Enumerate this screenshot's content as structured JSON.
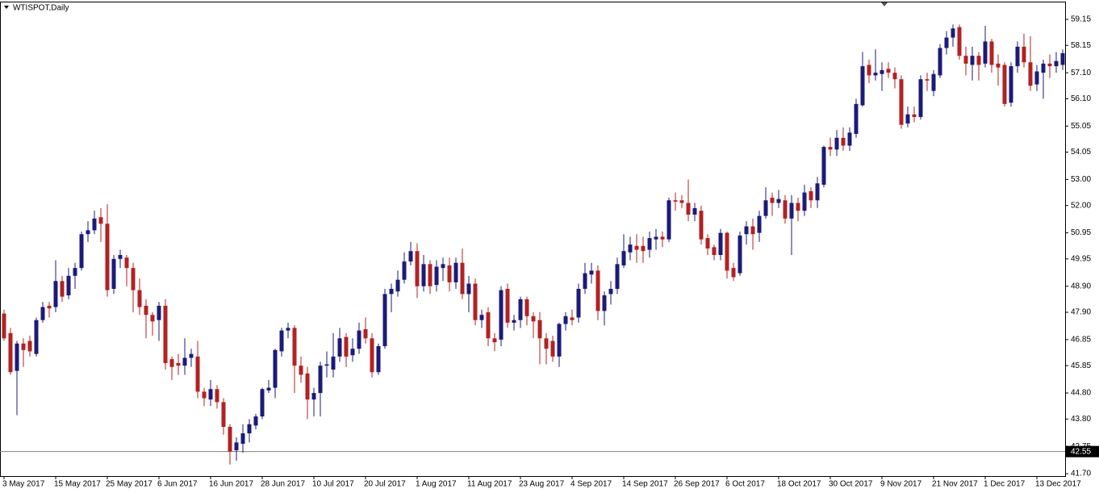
{
  "chart_data": {
    "type": "candlestick",
    "title": "WTISPOT,Daily",
    "categories": [
      "3 May 2017",
      null,
      null,
      null,
      null,
      null,
      null,
      null,
      "15 May 2017",
      null,
      null,
      null,
      null,
      null,
      null,
      null,
      "25 May 2017",
      null,
      null,
      null,
      null,
      null,
      null,
      null,
      "6 Jun 2017",
      null,
      null,
      null,
      null,
      null,
      null,
      null,
      "16 Jun 2017",
      null,
      null,
      null,
      null,
      null,
      null,
      null,
      "28 Jun 2017",
      null,
      null,
      null,
      null,
      null,
      null,
      null,
      "10 Jul 2017",
      null,
      null,
      null,
      null,
      null,
      null,
      null,
      "20 Jul 2017",
      null,
      null,
      null,
      null,
      null,
      null,
      null,
      "1 Aug 2017",
      null,
      null,
      null,
      null,
      null,
      null,
      null,
      "11 Aug 2017",
      null,
      null,
      null,
      null,
      null,
      null,
      null,
      "23 Aug 2017",
      null,
      null,
      null,
      null,
      null,
      null,
      null,
      "4 Sep 2017",
      null,
      null,
      null,
      null,
      null,
      null,
      null,
      "14 Sep 2017",
      null,
      null,
      null,
      null,
      null,
      null,
      null,
      "26 Sep 2017",
      null,
      null,
      null,
      null,
      null,
      null,
      null,
      "6 Oct 2017",
      null,
      null,
      null,
      null,
      null,
      null,
      null,
      "18 Oct 2017",
      null,
      null,
      null,
      null,
      null,
      null,
      null,
      "30 Oct 2017",
      null,
      null,
      null,
      null,
      null,
      null,
      null,
      "9 Nov 2017",
      null,
      null,
      null,
      null,
      null,
      null,
      null,
      "21 Nov 2017",
      null,
      null,
      null,
      null,
      null,
      null,
      null,
      "1 Dec 2017",
      null,
      null,
      null,
      null,
      null,
      null,
      null,
      "13 Dec 2017",
      null,
      null,
      null,
      null
    ],
    "open": [
      47.85,
      47.1,
      45.65,
      46.7,
      46.8,
      46.3,
      47.6,
      48.15,
      48.1,
      49.1,
      48.55,
      49.3,
      49.6,
      50.9,
      51.05,
      51.55,
      51.3,
      48.8,
      49.95,
      50.0,
      49.6,
      48.75,
      48.15,
      47.8,
      47.6,
      48.15,
      46.1,
      45.95,
      45.85,
      46.15,
      46.2,
      44.85,
      44.55,
      44.95,
      44.45,
      43.5,
      42.6,
      42.85,
      43.25,
      43.55,
      43.9,
      44.9,
      45.0,
      46.4,
      47.2,
      47.3,
      45.85,
      45.55,
      44.55,
      44.8,
      45.85,
      45.7,
      46.2,
      46.95,
      46.25,
      46.5,
      47.25,
      46.9,
      45.6,
      46.6,
      48.6,
      48.7,
      49.15,
      49.85,
      50.25,
      48.9,
      49.75,
      48.95,
      49.6,
      49.7,
      49.05,
      49.8,
      48.6,
      49.0,
      47.6,
      47.9,
      46.9,
      46.85,
      48.8,
      47.5,
      47.6,
      48.4,
      47.75,
      47.6,
      46.9,
      46.8,
      46.2,
      47.45,
      47.7,
      47.7,
      48.8,
      49.35,
      49.5,
      47.95,
      48.6,
      48.8,
      49.7,
      50.2,
      50.45,
      50.45,
      50.3,
      50.7,
      50.8,
      50.7,
      52.2,
      52.2,
      52.1,
      51.65,
      51.8,
      50.75,
      50.4,
      50.1,
      50.95,
      49.6,
      49.4,
      50.9,
      51.2,
      50.95,
      51.6,
      52.3,
      52.1,
      52.2,
      51.5,
      52.1,
      51.8,
      52.55,
      52.2,
      52.8,
      54.25,
      54.15,
      54.6,
      54.3,
      54.75,
      55.85,
      57.4,
      57.0,
      57.05,
      57.25,
      57.1,
      56.85,
      55.15,
      55.5,
      55.4,
      56.85,
      56.4,
      57.0,
      58.05,
      58.45,
      58.85,
      57.75,
      57.4,
      57.75,
      57.45,
      58.3,
      57.45,
      57.4,
      55.95,
      57.35,
      58.1,
      57.5,
      56.65,
      57.1,
      57.45,
      57.35,
      57.4
    ],
    "high": [
      48.0,
      47.3,
      46.8,
      46.9,
      47.0,
      47.7,
      48.3,
      48.3,
      49.9,
      49.3,
      49.6,
      49.8,
      51.0,
      51.4,
      51.8,
      51.9,
      52.05,
      50.1,
      50.3,
      50.1,
      49.8,
      49.2,
      48.4,
      47.9,
      48.3,
      48.4,
      46.2,
      46.3,
      46.9,
      46.5,
      46.8,
      45.0,
      45.3,
      45.1,
      44.6,
      43.6,
      43.1,
      43.6,
      43.8,
      44.0,
      45.0,
      45.3,
      46.5,
      47.3,
      47.5,
      47.4,
      46.2,
      45.8,
      45.0,
      46.0,
      46.4,
      47.1,
      47.3,
      47.1,
      46.9,
      47.5,
      47.7,
      47.1,
      46.7,
      48.8,
      49.0,
      49.5,
      50.2,
      50.6,
      50.55,
      50.1,
      49.9,
      49.9,
      50.0,
      50.0,
      50.0,
      50.35,
      49.3,
      49.2,
      48.0,
      48.1,
      47.1,
      48.9,
      49.0,
      47.8,
      48.5,
      48.5,
      47.9,
      47.9,
      47.1,
      47.0,
      47.5,
      47.9,
      48.0,
      49.0,
      49.8,
      49.8,
      49.7,
      48.7,
      49.1,
      50.0,
      50.9,
      50.8,
      50.9,
      50.8,
      51.0,
      51.1,
      51.0,
      52.3,
      52.5,
      52.4,
      53.0,
      52.1,
      52.0,
      50.9,
      50.5,
      51.1,
      51.0,
      49.8,
      51.0,
      51.4,
      51.5,
      51.8,
      52.7,
      52.5,
      52.6,
      52.4,
      52.4,
      52.3,
      52.8,
      52.7,
      53.1,
      54.3,
      54.6,
      54.9,
      55.0,
      55.0,
      56.1,
      57.9,
      57.6,
      58.0,
      57.5,
      57.5,
      57.3,
      57.0,
      55.8,
      55.8,
      57.0,
      57.1,
      57.2,
      58.2,
      58.7,
      58.95,
      58.95,
      58.1,
      58.1,
      57.9,
      58.9,
      58.4,
      57.8,
      57.5,
      57.5,
      58.3,
      58.6,
      58.5,
      57.4,
      57.6,
      57.8,
      57.9,
      58.0
    ],
    "low": [
      46.8,
      45.5,
      43.95,
      45.8,
      46.2,
      46.2,
      47.5,
      47.7,
      47.9,
      48.3,
      48.4,
      48.8,
      49.5,
      50.6,
      50.9,
      50.6,
      48.5,
      48.6,
      49.6,
      48.9,
      47.9,
      47.8,
      46.9,
      47.0,
      46.8,
      45.7,
      45.3,
      45.5,
      45.5,
      45.8,
      44.6,
      44.3,
      44.3,
      44.2,
      43.2,
      42.05,
      42.2,
      42.5,
      42.9,
      43.4,
      43.8,
      44.8,
      44.6,
      46.2,
      46.9,
      44.8,
      45.2,
      43.8,
      43.9,
      43.9,
      45.4,
      45.4,
      46.0,
      45.8,
      46.0,
      46.3,
      46.7,
      45.4,
      45.5,
      46.5,
      47.9,
      48.5,
      49.0,
      49.7,
      48.45,
      48.7,
      48.6,
      48.7,
      49.1,
      48.7,
      48.8,
      48.4,
      47.9,
      47.4,
      47.3,
      46.6,
      46.4,
      46.6,
      47.3,
      47.2,
      47.3,
      47.4,
      46.9,
      45.9,
      45.9,
      46.0,
      45.8,
      47.2,
      47.4,
      47.5,
      48.6,
      49.0,
      47.6,
      47.4,
      48.2,
      48.6,
      49.6,
      49.9,
      49.8,
      49.8,
      50.0,
      50.3,
      50.4,
      50.6,
      51.8,
      51.9,
      51.4,
      51.4,
      50.5,
      50.1,
      49.9,
      49.9,
      49.2,
      49.1,
      49.3,
      50.5,
      50.3,
      50.6,
      51.5,
      51.6,
      51.9,
      51.3,
      50.1,
      51.4,
      51.6,
      51.9,
      51.9,
      52.7,
      53.9,
      53.9,
      54.1,
      54.1,
      54.6,
      55.8,
      56.7,
      56.8,
      56.4,
      56.9,
      56.5,
      54.95,
      55.0,
      55.2,
      55.3,
      56.4,
      56.2,
      56.9,
      57.8,
      58.1,
      57.6,
      57.0,
      56.8,
      56.8,
      57.3,
      57.1,
      56.6,
      55.8,
      55.8,
      57.1,
      57.3,
      56.4,
      56.4,
      56.1,
      56.9,
      57.1,
      57.2
    ],
    "close": [
      46.9,
      45.6,
      46.7,
      46.45,
      46.4,
      47.6,
      48.1,
      48.05,
      49.1,
      48.5,
      49.3,
      49.6,
      50.9,
      51.05,
      51.5,
      51.3,
      48.75,
      49.95,
      50.1,
      49.6,
      48.75,
      48.1,
      47.8,
      47.55,
      48.15,
      45.95,
      45.8,
      45.85,
      46.15,
      46.3,
      44.85,
      44.6,
      44.95,
      44.45,
      43.5,
      42.55,
      42.9,
      43.25,
      43.6,
      43.9,
      44.95,
      45.0,
      46.45,
      47.2,
      47.3,
      45.85,
      45.5,
      44.55,
      44.8,
      45.85,
      45.9,
      46.2,
      46.9,
      46.2,
      46.5,
      47.2,
      46.9,
      45.6,
      46.6,
      48.6,
      48.8,
      49.15,
      49.85,
      50.25,
      48.9,
      49.75,
      48.9,
      49.65,
      49.75,
      49.05,
      49.8,
      48.6,
      49.0,
      47.6,
      47.8,
      46.9,
      46.75,
      48.75,
      47.5,
      47.6,
      48.4,
      47.75,
      47.55,
      46.9,
      46.5,
      46.2,
      47.45,
      47.75,
      47.6,
      48.8,
      49.4,
      49.5,
      47.95,
      48.55,
      48.8,
      49.75,
      50.25,
      50.5,
      50.3,
      50.25,
      50.75,
      50.8,
      50.7,
      52.2,
      52.15,
      52.1,
      51.65,
      51.9,
      50.7,
      50.35,
      50.1,
      50.95,
      49.5,
      49.25,
      50.85,
      51.2,
      50.9,
      51.6,
      52.2,
      52.1,
      52.25,
      51.5,
      52.1,
      51.8,
      52.5,
      52.2,
      52.85,
      54.25,
      54.15,
      54.6,
      54.3,
      54.8,
      55.9,
      57.35,
      57.0,
      57.1,
      57.2,
      57.1,
      56.85,
      55.1,
      55.5,
      55.4,
      56.85,
      56.8,
      57.05,
      58.05,
      58.45,
      58.8,
      57.75,
      57.45,
      57.75,
      57.4,
      58.3,
      57.4,
      57.3,
      55.9,
      57.35,
      58.1,
      57.5,
      56.6,
      57.15,
      57.45,
      57.35,
      57.55,
      57.85
    ],
    "up_color": "#1b1b78",
    "down_color": "#b22222",
    "ylim": [
      41.61,
      59.8
    ],
    "yticks": [
      59.15,
      58.15,
      {
        "value": 57.1,
        "label": "57.10"
      },
      {
        "value": 56.1,
        "label": "56.10"
      },
      55.05,
      54.05,
      {
        "value": 53,
        "label": "53.00"
      },
      {
        "value": 52,
        "label": "52.00"
      },
      50.95,
      49.95,
      {
        "value": 48.9,
        "label": "48.90"
      },
      {
        "value": 47.9,
        "label": "47.90"
      },
      46.85,
      45.85,
      {
        "value": 44.8,
        "label": "44.80"
      },
      {
        "value": 43.8,
        "label": "43.80"
      },
      42.75,
      {
        "value": 41.7,
        "label": "41.70"
      }
    ],
    "price_line": 42.55
  }
}
